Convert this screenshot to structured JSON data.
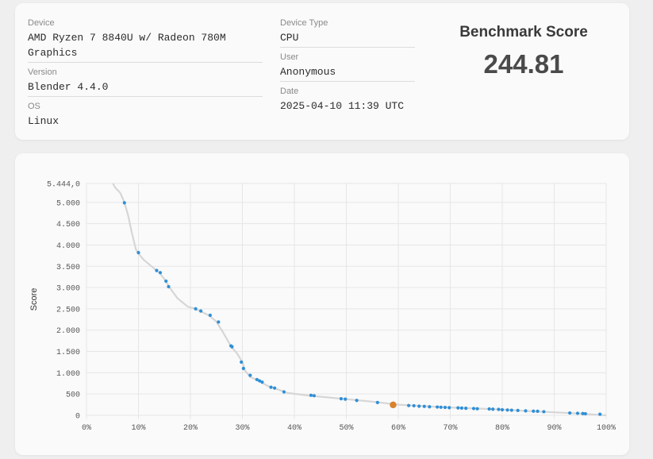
{
  "device": {
    "label": "Device",
    "value": "AMD Ryzen 7 8840U w/ Radeon 780M\nGraphics"
  },
  "version": {
    "label": "Version",
    "value": "Blender 4.4.0"
  },
  "os": {
    "label": "OS",
    "value": "Linux"
  },
  "device_type": {
    "label": "Device Type",
    "value": "CPU"
  },
  "user": {
    "label": "User",
    "value": "Anonymous"
  },
  "date": {
    "label": "Date",
    "value": "2025-04-10 11:39 UTC"
  },
  "benchmark": {
    "title": "Benchmark Score",
    "score": "244.81"
  },
  "colors": {
    "point": "#2f8fd6",
    "highlight": "#d9822b",
    "curve": "#d6d6d6"
  },
  "chart_data": {
    "type": "scatter",
    "ylabel": "Score",
    "xlabel": "",
    "xlim": [
      0,
      100
    ],
    "ylim": [
      0,
      5444
    ],
    "y_ticks": [
      0,
      500,
      1000,
      1500,
      2000,
      2500,
      3000,
      3500,
      4000,
      4500,
      5000,
      5444
    ],
    "y_tick_labels": [
      "0",
      "500",
      "1.000",
      "1.500",
      "2.000",
      "2.500",
      "3.000",
      "3.500",
      "4.000",
      "4.500",
      "5.000",
      "5.444,0"
    ],
    "x_ticks": [
      0,
      10,
      20,
      30,
      40,
      50,
      60,
      70,
      80,
      90,
      100
    ],
    "x_tick_labels": [
      "0%",
      "10%",
      "20%",
      "30%",
      "40%",
      "50%",
      "60%",
      "70%",
      "80%",
      "90%",
      "100%"
    ],
    "curve": [
      [
        5.1,
        5444
      ],
      [
        5.5,
        5350
      ],
      [
        6.5,
        5220
      ],
      [
        7.3,
        5000
      ],
      [
        8.0,
        4700
      ],
      [
        8.7,
        4300
      ],
      [
        9.5,
        3900
      ],
      [
        10.0,
        3800
      ],
      [
        11.0,
        3650
      ],
      [
        12.5,
        3500
      ],
      [
        14,
        3350
      ],
      [
        15.0,
        3200
      ],
      [
        16.0,
        3000
      ],
      [
        17.5,
        2750
      ],
      [
        19.5,
        2550
      ],
      [
        21,
        2500
      ],
      [
        23.5,
        2350
      ],
      [
        25.0,
        2200
      ],
      [
        26.5,
        1900
      ],
      [
        27.8,
        1620
      ],
      [
        29.0,
        1450
      ],
      [
        30.0,
        1250
      ],
      [
        30.5,
        1050
      ],
      [
        31.5,
        900
      ],
      [
        33,
        820
      ],
      [
        35,
        680
      ],
      [
        37,
        600
      ],
      [
        38.5,
        530
      ],
      [
        43,
        460
      ],
      [
        50,
        380
      ],
      [
        55,
        320
      ],
      [
        60,
        250
      ],
      [
        65,
        215
      ],
      [
        70,
        185
      ],
      [
        75,
        160
      ],
      [
        80,
        135
      ],
      [
        85,
        100
      ],
      [
        90,
        70
      ],
      [
        95,
        40
      ],
      [
        100,
        0
      ]
    ],
    "series": [
      {
        "values": [
          [
            7.3,
            4990
          ],
          [
            10.0,
            3820
          ],
          [
            13.5,
            3400
          ],
          [
            14.2,
            3350
          ],
          [
            15.3,
            3150
          ],
          [
            15.8,
            3020
          ],
          [
            21.0,
            2500
          ],
          [
            22.0,
            2450
          ],
          [
            23.8,
            2350
          ],
          [
            25.4,
            2190
          ],
          [
            27.8,
            1630
          ],
          [
            28.0,
            1610
          ],
          [
            29.8,
            1250
          ],
          [
            30.2,
            1100
          ],
          [
            31.5,
            940
          ],
          [
            32.8,
            840
          ],
          [
            33.3,
            810
          ],
          [
            33.8,
            780
          ],
          [
            35.5,
            660
          ],
          [
            36.2,
            640
          ],
          [
            38.0,
            550
          ],
          [
            43.2,
            470
          ],
          [
            43.8,
            460
          ],
          [
            49.0,
            390
          ],
          [
            49.8,
            380
          ],
          [
            52.0,
            350
          ],
          [
            56.0,
            300
          ],
          [
            59.0,
            245
          ],
          [
            62.0,
            230
          ],
          [
            63.0,
            225
          ],
          [
            64.0,
            215
          ],
          [
            65.0,
            210
          ],
          [
            66.0,
            200
          ],
          [
            67.5,
            195
          ],
          [
            68.2,
            190
          ],
          [
            69.0,
            185
          ],
          [
            69.8,
            180
          ],
          [
            71.5,
            175
          ],
          [
            72.2,
            170
          ],
          [
            73.0,
            165
          ],
          [
            74.5,
            160
          ],
          [
            75.2,
            155
          ],
          [
            77.5,
            150
          ],
          [
            78.2,
            145
          ],
          [
            79.3,
            140
          ],
          [
            80.0,
            130
          ],
          [
            81.0,
            125
          ],
          [
            81.8,
            120
          ],
          [
            83.0,
            115
          ],
          [
            84.5,
            105
          ],
          [
            86.0,
            98
          ],
          [
            86.8,
            95
          ],
          [
            88.0,
            85
          ],
          [
            93.0,
            55
          ],
          [
            94.5,
            48
          ],
          [
            95.5,
            42
          ],
          [
            96.0,
            38
          ],
          [
            98.8,
            25
          ]
        ]
      },
      {
        "values": [
          [
            59.0,
            245
          ]
        ]
      }
    ]
  }
}
